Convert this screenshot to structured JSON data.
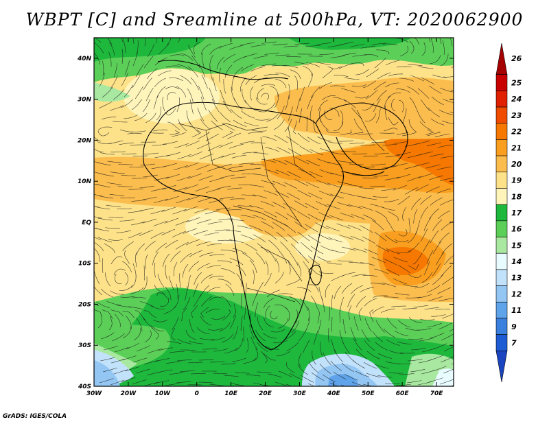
{
  "title": "WBPT [C] and Sreamline at 500hPa, VT: 2020062900",
  "footer": "GrADS: IGES/COLA",
  "map": {
    "lon_labels": [
      "30W",
      "20W",
      "10W",
      "0",
      "10E",
      "20E",
      "30E",
      "40E",
      "50E",
      "60E",
      "70E"
    ],
    "lat_labels": [
      "40N",
      "30N",
      "20N",
      "10N",
      "EQ",
      "10S",
      "20S",
      "30S",
      "40S"
    ],
    "lon_range": [
      -30,
      75
    ],
    "lat_range": [
      -40,
      45
    ]
  },
  "colorbar": {
    "labels": [
      "26",
      "25",
      "24",
      "23",
      "22",
      "21",
      "20",
      "19",
      "18",
      "17",
      "16",
      "15",
      "14",
      "13",
      "12",
      "11",
      "9",
      "7"
    ],
    "colors": [
      "#a50000",
      "#c80000",
      "#e02000",
      "#f04c00",
      "#f67800",
      "#f99e1e",
      "#fbbd4e",
      "#fde28a",
      "#fff5bb",
      "#1eb83c",
      "#5ccf58",
      "#a8e8a0",
      "#e8fbff",
      "#c2e2fb",
      "#93c6f3",
      "#5fa3ea",
      "#3b7fdf",
      "#1f5bd3",
      "#1a44c0"
    ]
  }
}
